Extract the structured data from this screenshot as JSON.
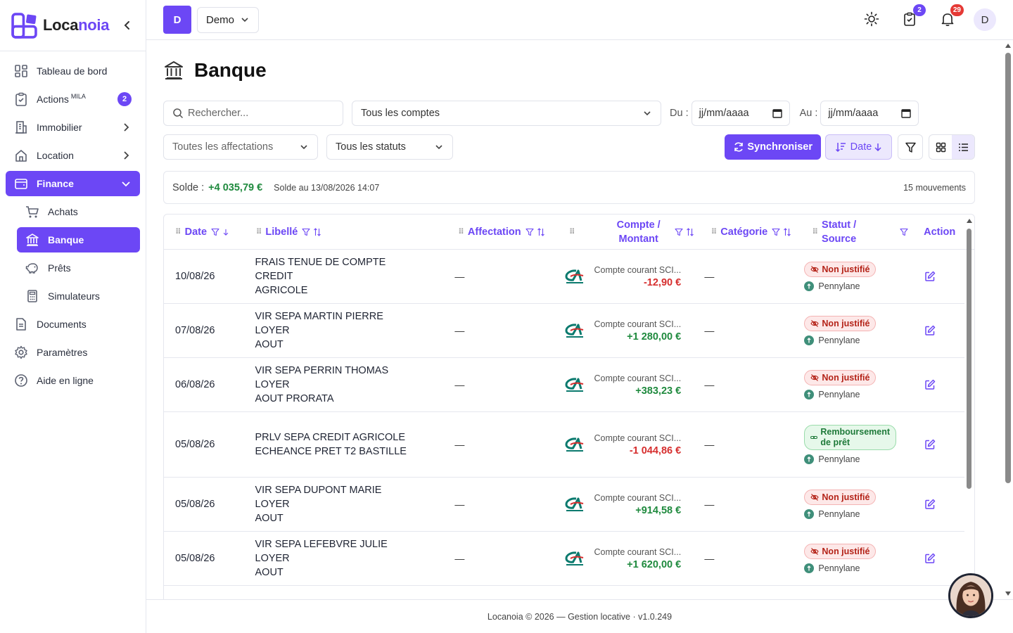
{
  "brand": {
    "name_part1": "Loca",
    "name_part2": "noia"
  },
  "sidebar": {
    "items": [
      {
        "label": "Tableau de bord"
      },
      {
        "label": "Actions",
        "sup": "MILA",
        "count": "2"
      },
      {
        "label": "Immobilier"
      },
      {
        "label": "Location"
      },
      {
        "label": "Finance"
      },
      {
        "label": "Achats"
      },
      {
        "label": "Banque"
      },
      {
        "label": "Prêts"
      },
      {
        "label": "Simulateurs"
      },
      {
        "label": "Documents"
      },
      {
        "label": "Paramètres"
      },
      {
        "label": "Aide en ligne"
      }
    ]
  },
  "topbar": {
    "org_initial": "D",
    "org_name": "Demo",
    "tasks_badge": "2",
    "notif_badge": "29",
    "user_initial": "D"
  },
  "page": {
    "title": "Banque"
  },
  "filters": {
    "search_placeholder": "Rechercher...",
    "accounts": "Tous les comptes",
    "from_label": "Du :",
    "from_value": "jj/mm/aaaa",
    "to_label": "Au :",
    "to_value": "jj/mm/aaaa",
    "assignments": "Toutes les affectations",
    "statuses": "Tous les statuts",
    "sync_label": "Synchroniser",
    "sort_label": "Date"
  },
  "balance": {
    "label": "Solde :",
    "value": "+4 035,79 €",
    "date": "Solde au 13/08/2026 14:07",
    "count": "15 mouvements"
  },
  "table": {
    "headers": {
      "date": "Date",
      "libelle": "Libellé",
      "affectation": "Affectation",
      "compte_1": "Compte /",
      "compte_2": "Montant",
      "categorie": "Catégorie",
      "statut_1": "Statut /",
      "statut_2": "Source",
      "action": "Action"
    },
    "rows": [
      {
        "date": "10/08/26",
        "libelle_1": "FRAIS TENUE DE COMPTE CREDIT",
        "libelle_2": "AGRICOLE",
        "affectation": "—",
        "account": "Compte courant SCI...",
        "amount": "-12,90 €",
        "categorie": "—",
        "status": "Non justifié",
        "source": "Pennylane"
      },
      {
        "date": "07/08/26",
        "libelle_1": "VIR SEPA MARTIN PIERRE LOYER",
        "libelle_2": "AOUT",
        "affectation": "—",
        "account": "Compte courant SCI...",
        "amount": "+1 280,00 €",
        "categorie": "—",
        "status": "Non justifié",
        "source": "Pennylane"
      },
      {
        "date": "06/08/26",
        "libelle_1": "VIR SEPA PERRIN THOMAS LOYER",
        "libelle_2": "AOUT PRORATA",
        "affectation": "—",
        "account": "Compte courant SCI...",
        "amount": "+383,23 €",
        "categorie": "—",
        "status": "Non justifié",
        "source": "Pennylane"
      },
      {
        "date": "05/08/26",
        "libelle_1": "PRLV SEPA CREDIT AGRICOLE",
        "libelle_2": "ECHEANCE PRET T2 BASTILLE",
        "affectation": "—",
        "account": "Compte courant SCI...",
        "amount": "-1 044,86 €",
        "categorie": "—",
        "status_1": "Remboursement",
        "status_2": "de prêt",
        "source": "Pennylane"
      },
      {
        "date": "05/08/26",
        "libelle_1": "VIR SEPA DUPONT MARIE LOYER",
        "libelle_2": "AOUT",
        "affectation": "—",
        "account": "Compte courant SCI...",
        "amount": "+914,58 €",
        "categorie": "—",
        "status": "Non justifié",
        "source": "Pennylane"
      },
      {
        "date": "05/08/26",
        "libelle_1": "VIR SEPA LEFEBVRE JULIE LOYER",
        "libelle_2": "AOUT",
        "affectation": "—",
        "account": "Compte courant SCI...",
        "amount": "+1 620,00 €",
        "categorie": "—",
        "status": "Non justifié",
        "source": "Pennylane"
      }
    ]
  },
  "footer": {
    "text": "Locanoia © 2026 — Gestion locative · v1.0.249"
  },
  "colors": {
    "accent": "#6c47f5",
    "positive": "#1f8a3e",
    "negative": "#d62e2e"
  }
}
